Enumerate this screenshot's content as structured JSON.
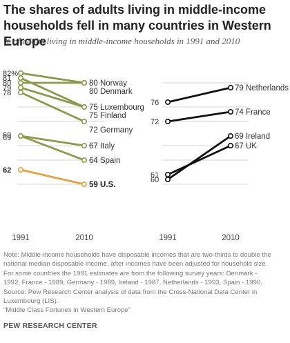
{
  "chart_data": {
    "type": "slope",
    "title_lines": [
      "The shares of adults living in middle-income",
      "households fell in many countries in Western Europe"
    ],
    "subtitle": "% of adults living in middle-income households in 1991 and 2010",
    "x_labels": [
      "1991",
      "2010"
    ],
    "left_start_labels": [
      {
        "text": "82%",
        "value": 82,
        "bold": false
      },
      {
        "text": "81",
        "value": 81,
        "bold": false
      },
      {
        "text": "80",
        "value": 80,
        "bold": false
      },
      {
        "text": "79",
        "value": 79,
        "bold": false
      },
      {
        "text": "78",
        "value": 78,
        "bold": false
      },
      {
        "text": "69",
        "value": 69.3,
        "bold": false
      },
      {
        "text": "69",
        "value": 68.7,
        "bold": false
      },
      {
        "text": "62",
        "value": 62,
        "bold": true
      }
    ],
    "panels": [
      {
        "series": [
          {
            "name": "Norway",
            "start": 80,
            "end": 80,
            "color": "#8a9a4a",
            "bold": false,
            "end_label": "80 Norway"
          },
          {
            "name": "Denmark",
            "start": 82,
            "end": 80,
            "color": "#8a9a4a",
            "bold": false,
            "end_label": "80 Denmark"
          },
          {
            "name": "Luxembourg",
            "start": 81,
            "end": 75,
            "color": "#8a9a4a",
            "bold": false,
            "end_label": "75 Luxembourg"
          },
          {
            "name": "Finland",
            "start": 79,
            "end": 75,
            "color": "#8a9a4a",
            "bold": false,
            "end_label": "75 Finland"
          },
          {
            "name": "Germany",
            "start": 78,
            "end": 72,
            "color": "#8a9a4a",
            "bold": false,
            "end_label": "72 Germany"
          },
          {
            "name": "Italy",
            "start": 69,
            "end": 67,
            "color": "#8a9a4a",
            "bold": false,
            "end_label": "67 Italy"
          },
          {
            "name": "Spain",
            "start": 69,
            "end": 64,
            "color": "#8a9a4a",
            "bold": false,
            "end_label": "64 Spain"
          },
          {
            "name": "U.S.",
            "start": 62,
            "end": 59,
            "color": "#e6a23c",
            "bold": true,
            "end_label": "59 U.S."
          }
        ]
      },
      {
        "start_labels": [
          {
            "text": "76",
            "value": 76
          },
          {
            "text": "72",
            "value": 72
          },
          {
            "text": "61",
            "value": 61
          },
          {
            "text": "60",
            "value": 60
          }
        ],
        "series": [
          {
            "name": "Netherlands",
            "start": 76,
            "end": 79,
            "color": "#111111",
            "bold": false,
            "end_label": "79 Netherlands"
          },
          {
            "name": "France",
            "start": 72,
            "end": 74,
            "color": "#111111",
            "bold": false,
            "end_label": "74 France"
          },
          {
            "name": "Ireland",
            "start": 60,
            "end": 69,
            "color": "#111111",
            "bold": false,
            "end_label": "69 Ireland"
          },
          {
            "name": "UK",
            "start": 61,
            "end": 67,
            "color": "#111111",
            "bold": false,
            "end_label": "67 UK"
          }
        ]
      }
    ]
  },
  "note_lines": [
    "Note: Middle-income households have disposable incomes that are two-thirds to double the",
    "national median disposable income, after incomes have been adjusted for household size.",
    "For some countries the 1991 estimates are from the following survey years: Denmark -",
    "1992, France - 1989, Germany - 1989, Ireland - 1987, Netherlands - 1993, Spain - 1990.",
    "Source: Pew Research Center analysis of data from the Cross-National Data Center in",
    "Luxembourg (LIS).",
    "“Middle Class Fortunes in Western Europe”"
  ],
  "brand": "PEW RESEARCH CENTER",
  "colors": {
    "europe_line": "#8a9a4a",
    "us_line": "#e6a23c",
    "right_line": "#111111",
    "gridline": "#d4d4d4",
    "text": "#333333"
  }
}
